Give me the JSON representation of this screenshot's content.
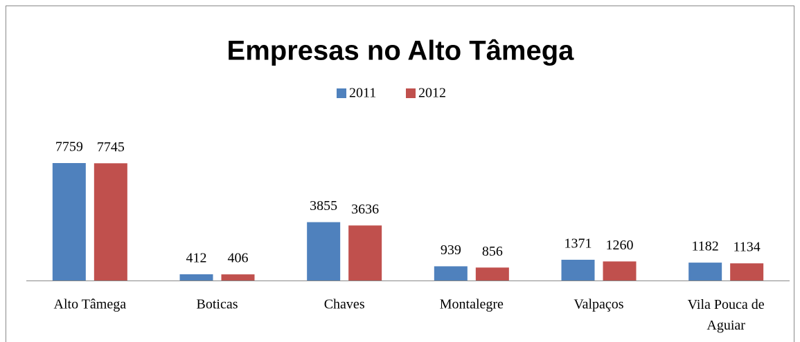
{
  "chart_data": {
    "type": "bar",
    "title": "Empresas no Alto Tâmega",
    "categories": [
      "Alto Tâmega",
      "Boticas",
      "Chaves",
      "Montalegre",
      "Valpaços",
      "Vila Pouca de Aguiar"
    ],
    "series": [
      {
        "name": "2011",
        "color": "#4f81bd",
        "values": [
          7759,
          412,
          3855,
          939,
          1371,
          1182
        ]
      },
      {
        "name": "2012",
        "color": "#c0504d",
        "values": [
          7745,
          406,
          3636,
          856,
          1260,
          1134
        ]
      }
    ],
    "legend": "top"
  }
}
